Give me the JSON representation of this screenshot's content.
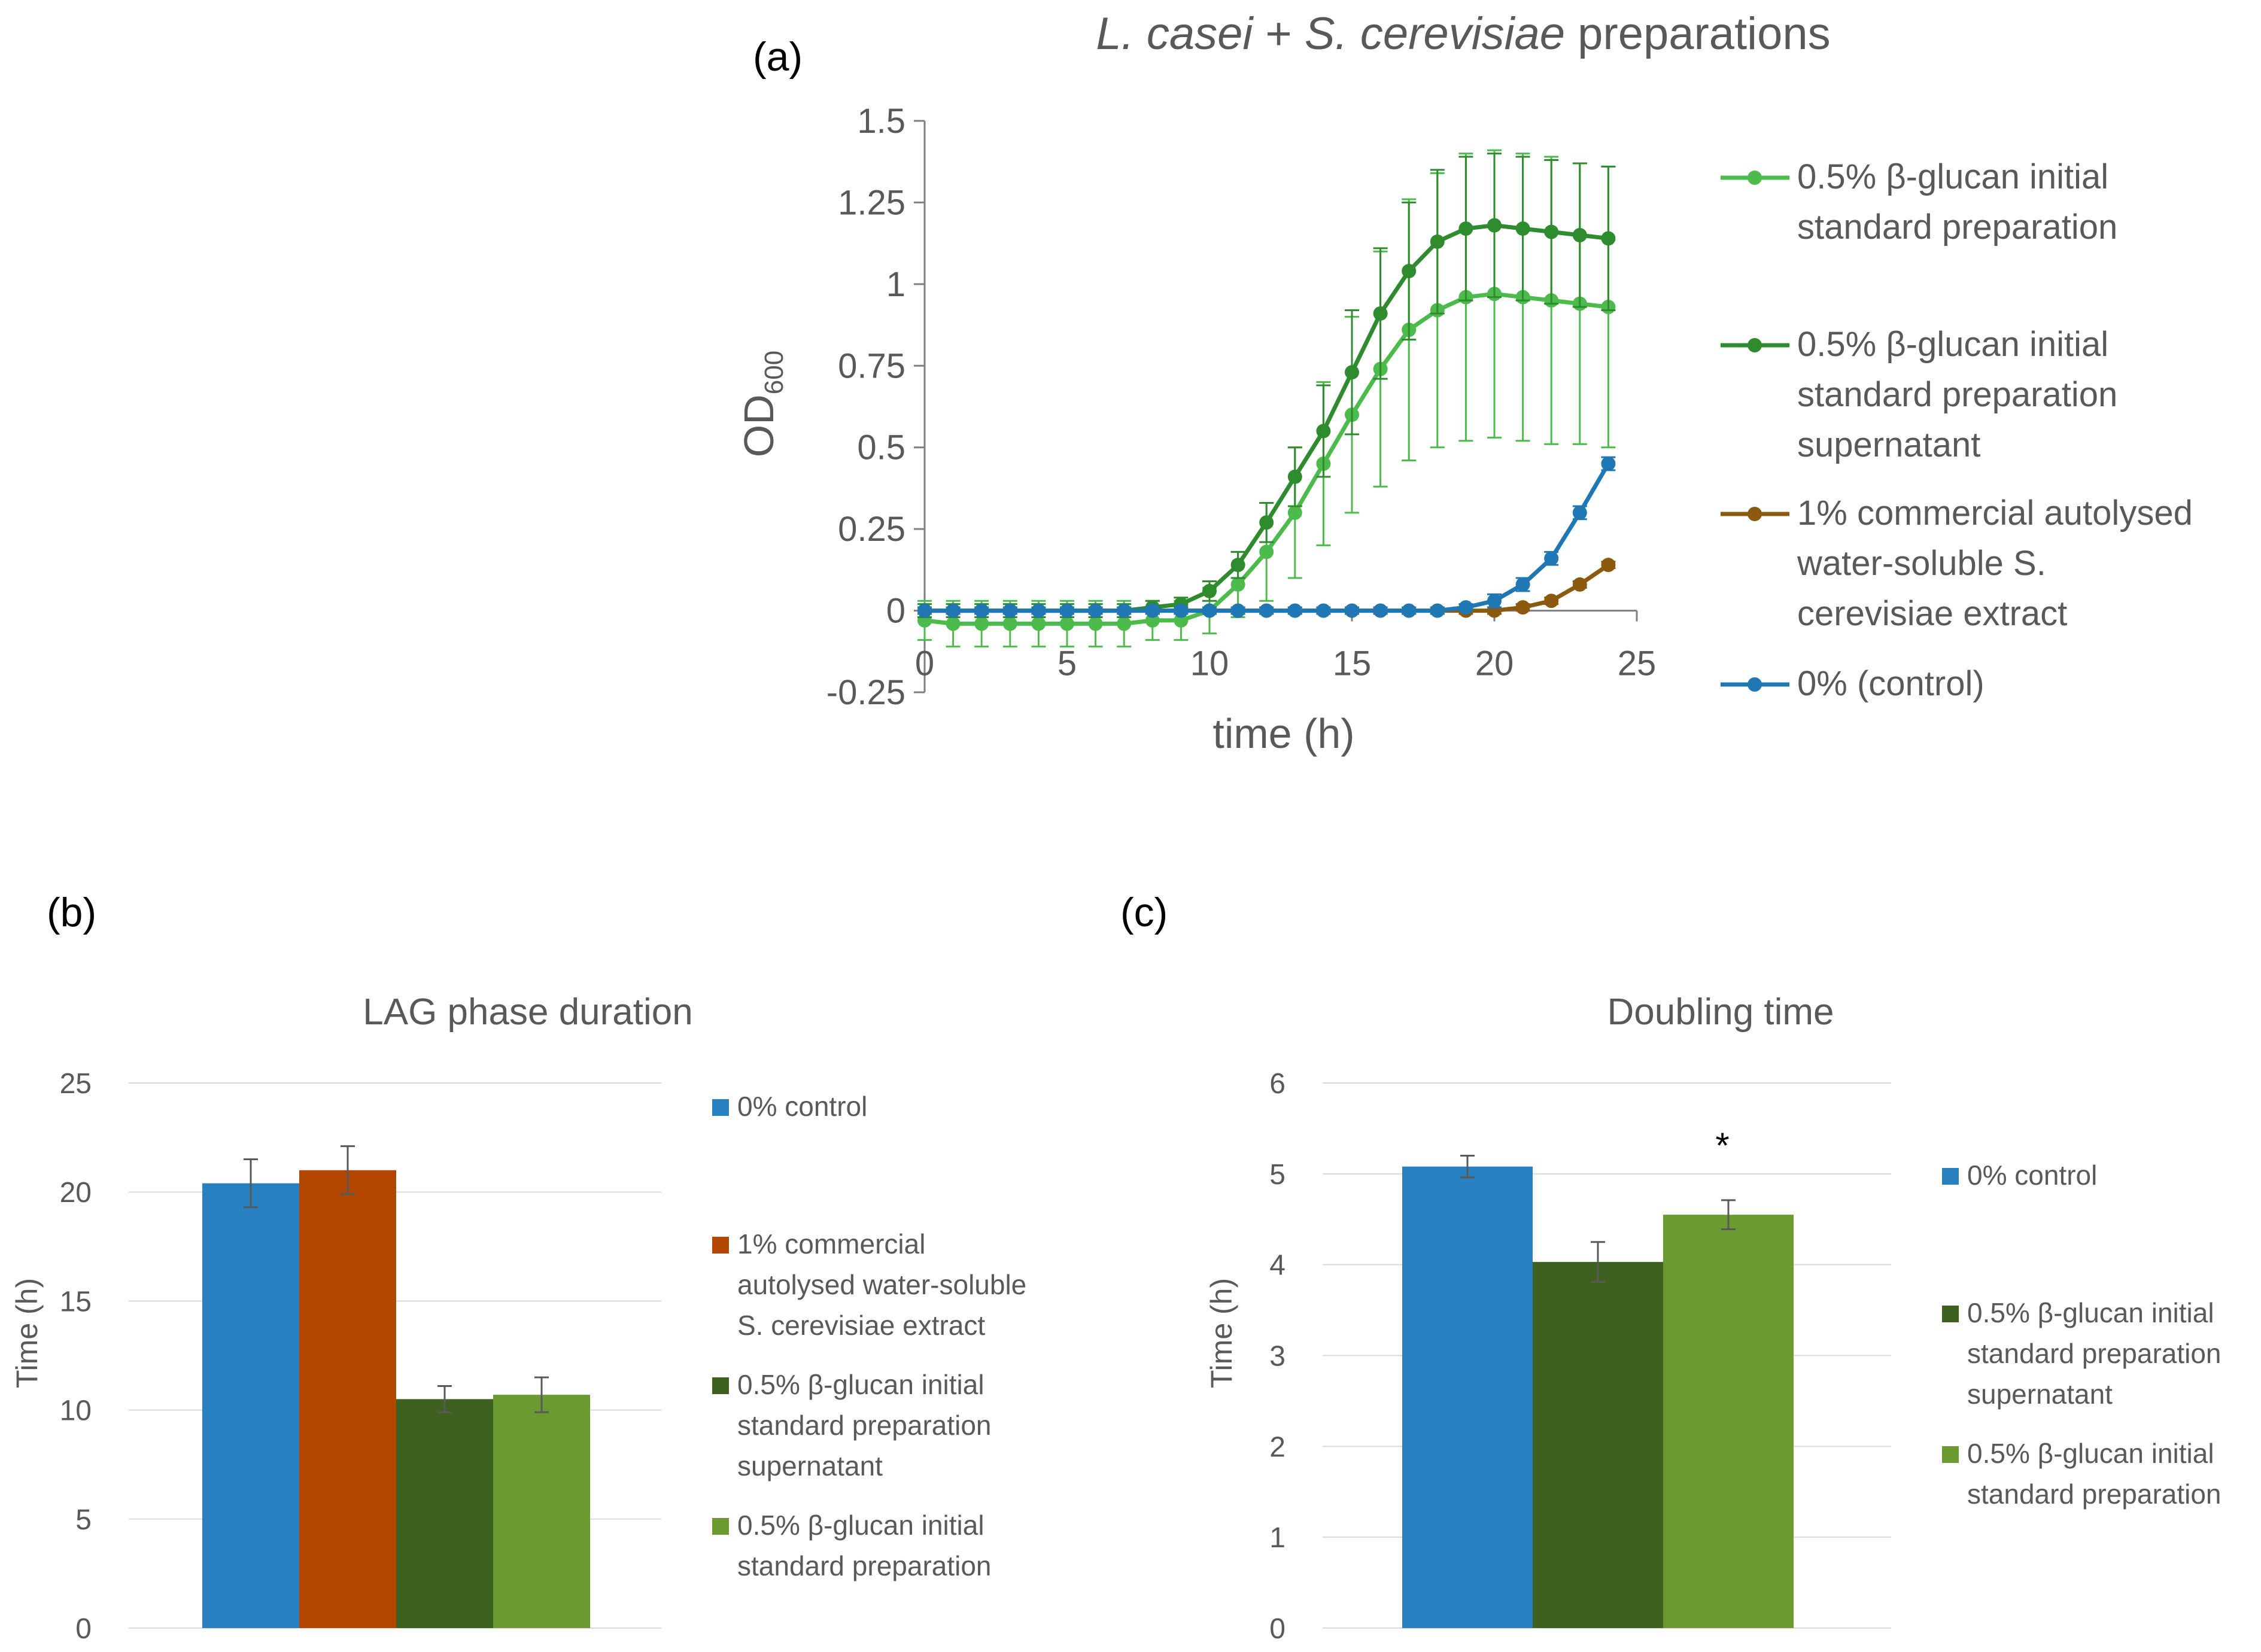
{
  "panels": {
    "a": "(a)",
    "b": "(b)",
    "c": "(c)"
  },
  "chart_data": [
    {
      "id": "a",
      "type": "line",
      "title_italic_1": "L. casei",
      "title_plain_1": " + ",
      "title_italic_2": "S. cerevisiae",
      "title_plain_2": " preparations",
      "xlabel": "time (h)",
      "ylabel_main": "OD",
      "ylabel_sub": "600",
      "xlim": [
        0,
        25
      ],
      "ylim": [
        -0.25,
        1.5
      ],
      "x_ticks": [
        "0",
        "5",
        "10",
        "15",
        "20",
        "25"
      ],
      "y_ticks": [
        "1.5",
        "1.25",
        "1",
        "0.75",
        "0.5",
        "0.25",
        "0",
        "-0.25"
      ],
      "legend_position": "right",
      "series": [
        {
          "name_lines": [
            "0.5% β-glucan initial",
            "standard preparation"
          ],
          "color": "#4cbb4c",
          "x": [
            0,
            1,
            2,
            3,
            4,
            5,
            6,
            7,
            8,
            9,
            10,
            11,
            12,
            13,
            14,
            15,
            16,
            17,
            18,
            19,
            20,
            21,
            22,
            23,
            24
          ],
          "y": [
            -0.03,
            -0.04,
            -0.04,
            -0.04,
            -0.04,
            -0.04,
            -0.04,
            -0.04,
            -0.03,
            -0.03,
            0.0,
            0.08,
            0.18,
            0.3,
            0.45,
            0.6,
            0.74,
            0.86,
            0.92,
            0.96,
            0.97,
            0.96,
            0.95,
            0.94,
            0.93
          ],
          "err": [
            0.06,
            0.07,
            0.07,
            0.07,
            0.07,
            0.07,
            0.07,
            0.07,
            0.06,
            0.06,
            0.07,
            0.1,
            0.15,
            0.2,
            0.25,
            0.3,
            0.36,
            0.4,
            0.42,
            0.44,
            0.44,
            0.44,
            0.44,
            0.43,
            0.43
          ]
        },
        {
          "name_lines": [
            "0.5% β-glucan initial",
            "standard preparation",
            "supernatant"
          ],
          "color": "#2e8b2e",
          "x": [
            0,
            1,
            2,
            3,
            4,
            5,
            6,
            7,
            8,
            9,
            10,
            11,
            12,
            13,
            14,
            15,
            16,
            17,
            18,
            19,
            20,
            21,
            22,
            23,
            24
          ],
          "y": [
            0.0,
            0.0,
            0.0,
            0.0,
            0.0,
            0.0,
            0.0,
            0.0,
            0.01,
            0.02,
            0.06,
            0.14,
            0.27,
            0.41,
            0.55,
            0.73,
            0.91,
            1.04,
            1.13,
            1.17,
            1.18,
            1.17,
            1.16,
            1.15,
            1.14
          ],
          "err": [
            0.02,
            0.02,
            0.02,
            0.02,
            0.02,
            0.02,
            0.02,
            0.02,
            0.02,
            0.02,
            0.03,
            0.04,
            0.06,
            0.09,
            0.14,
            0.19,
            0.2,
            0.21,
            0.22,
            0.22,
            0.22,
            0.22,
            0.22,
            0.22,
            0.22
          ]
        },
        {
          "name_lines": [
            "1% commercial autolysed",
            "water-soluble S.",
            "cerevisiae extract"
          ],
          "color": "#8b5a0e",
          "x": [
            0,
            1,
            2,
            3,
            4,
            5,
            6,
            7,
            8,
            9,
            10,
            11,
            12,
            13,
            14,
            15,
            16,
            17,
            18,
            19,
            20,
            21,
            22,
            23,
            24
          ],
          "y": [
            0.0,
            0.0,
            0.0,
            0.0,
            0.0,
            0.0,
            0.0,
            0.0,
            0.0,
            0.0,
            0.0,
            0.0,
            0.0,
            0.0,
            0.0,
            0.0,
            0.0,
            0.0,
            0.0,
            0.0,
            0.0,
            0.01,
            0.03,
            0.08,
            0.14
          ],
          "err": [
            0.01,
            0.01,
            0.01,
            0.01,
            0.01,
            0.01,
            0.01,
            0.01,
            0.01,
            0.01,
            0.01,
            0.01,
            0.01,
            0.01,
            0.01,
            0.01,
            0.01,
            0.01,
            0.01,
            0.01,
            0.01,
            0.01,
            0.01,
            0.01,
            0.01
          ]
        },
        {
          "name_lines": [
            "0% (control)"
          ],
          "color": "#1f77b4",
          "x": [
            0,
            1,
            2,
            3,
            4,
            5,
            6,
            7,
            8,
            9,
            10,
            11,
            12,
            13,
            14,
            15,
            16,
            17,
            18,
            19,
            20,
            21,
            22,
            23,
            24
          ],
          "y": [
            0.0,
            0.0,
            0.0,
            0.0,
            0.0,
            0.0,
            0.0,
            0.0,
            0.0,
            0.0,
            0.0,
            0.0,
            0.0,
            0.0,
            0.0,
            0.0,
            0.0,
            0.0,
            0.0,
            0.01,
            0.03,
            0.08,
            0.16,
            0.3,
            0.45
          ],
          "err": [
            0.01,
            0.01,
            0.01,
            0.01,
            0.01,
            0.01,
            0.01,
            0.01,
            0.01,
            0.01,
            0.01,
            0.01,
            0.01,
            0.01,
            0.01,
            0.01,
            0.01,
            0.01,
            0.01,
            0.01,
            0.02,
            0.02,
            0.02,
            0.02,
            0.02
          ]
        }
      ]
    },
    {
      "id": "b",
      "type": "bar",
      "title": "LAG phase duration",
      "ylabel": "Time (h)",
      "ylim": [
        0,
        25
      ],
      "y_ticks": [
        "25",
        "20",
        "15",
        "10",
        "5",
        "0"
      ],
      "grid": true,
      "legend_position": "right",
      "bars": [
        {
          "value": 20.4,
          "err": 1.1,
          "color": "#2980c0"
        },
        {
          "value": 21.0,
          "err": 1.1,
          "color": "#b34700"
        },
        {
          "value": 10.5,
          "err": 0.6,
          "color": "#3f6120"
        },
        {
          "value": 10.7,
          "err": 0.8,
          "color": "#6a9a30"
        }
      ],
      "legend": [
        {
          "color": "#2980c0",
          "lines": [
            "0% control"
          ]
        },
        {
          "color": "#b34700",
          "lines": [
            "1% commercial",
            "autolysed water-soluble",
            "S. cerevisiae extract"
          ]
        },
        {
          "color": "#3f6120",
          "lines": [
            "0.5% β-glucan initial",
            "standard preparation",
            "supernatant"
          ]
        },
        {
          "color": "#6a9a30",
          "lines": [
            "0.5% β-glucan initial",
            "standard preparation"
          ]
        }
      ]
    },
    {
      "id": "c",
      "type": "bar",
      "title": "Doubling time",
      "ylabel": "Time (h)",
      "ylim": [
        0,
        6
      ],
      "y_ticks": [
        "6",
        "5",
        "4",
        "3",
        "2",
        "1",
        "0"
      ],
      "grid": true,
      "legend_position": "right",
      "annotation": "*",
      "bars": [
        {
          "value": 5.08,
          "err": 0.12,
          "color": "#2980c0"
        },
        {
          "value": 4.03,
          "err": 0.22,
          "color": "#3f6120"
        },
        {
          "value": 4.55,
          "err": 0.16,
          "color": "#6a9a30"
        }
      ],
      "legend": [
        {
          "color": "#2980c0",
          "lines": [
            "0% control"
          ]
        },
        {
          "color": "#3f6120",
          "lines": [
            "0.5% β-glucan initial",
            "standard preparation",
            "supernatant"
          ]
        },
        {
          "color": "#6a9a30",
          "lines": [
            "0.5% β-glucan initial",
            "standard preparation"
          ]
        }
      ]
    }
  ]
}
